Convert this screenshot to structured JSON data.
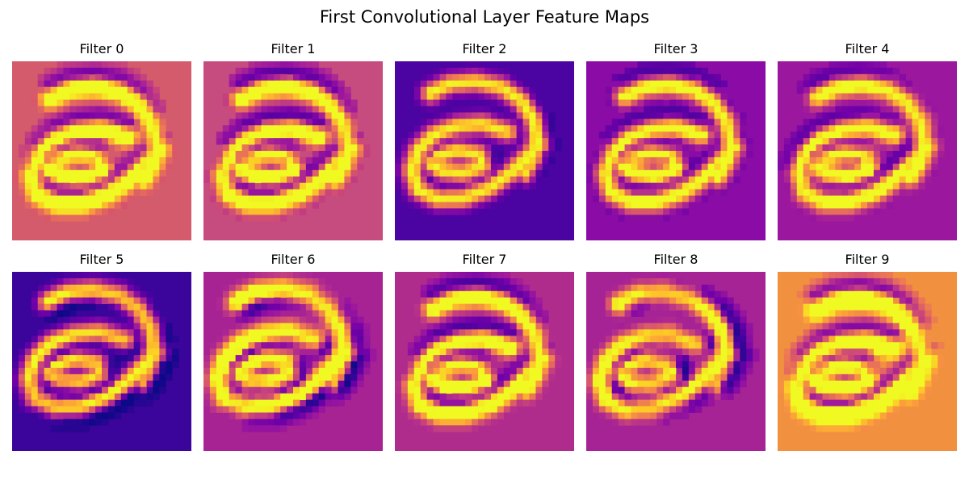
{
  "title": "First Convolutional Layer Feature Maps",
  "colormap": "plasma",
  "colormap_stops": [
    "#0d0887",
    "#46039f",
    "#7201a8",
    "#9c179e",
    "#bd3786",
    "#d8576b",
    "#ed7953",
    "#fb9f3a",
    "#fdca26",
    "#f0f921"
  ],
  "grid": {
    "rows": 2,
    "cols": 5
  },
  "filters": [
    {
      "label": "Filter 0",
      "background": "#d35b6b"
    },
    {
      "label": "Filter 1",
      "background": "#c64c7f"
    },
    {
      "label": "Filter 2",
      "background": "#4b03a1"
    },
    {
      "label": "Filter 3",
      "background": "#8a0ba5"
    },
    {
      "label": "Filter 4",
      "background": "#9b179e"
    },
    {
      "label": "Filter 5",
      "background": "#3b049a"
    },
    {
      "label": "Filter 6",
      "background": "#a72393"
    },
    {
      "label": "Filter 7",
      "background": "#b02c8c"
    },
    {
      "label": "Filter 8",
      "background": "#a52394"
    },
    {
      "label": "Filter 9",
      "background": "#f1903f"
    }
  ]
}
